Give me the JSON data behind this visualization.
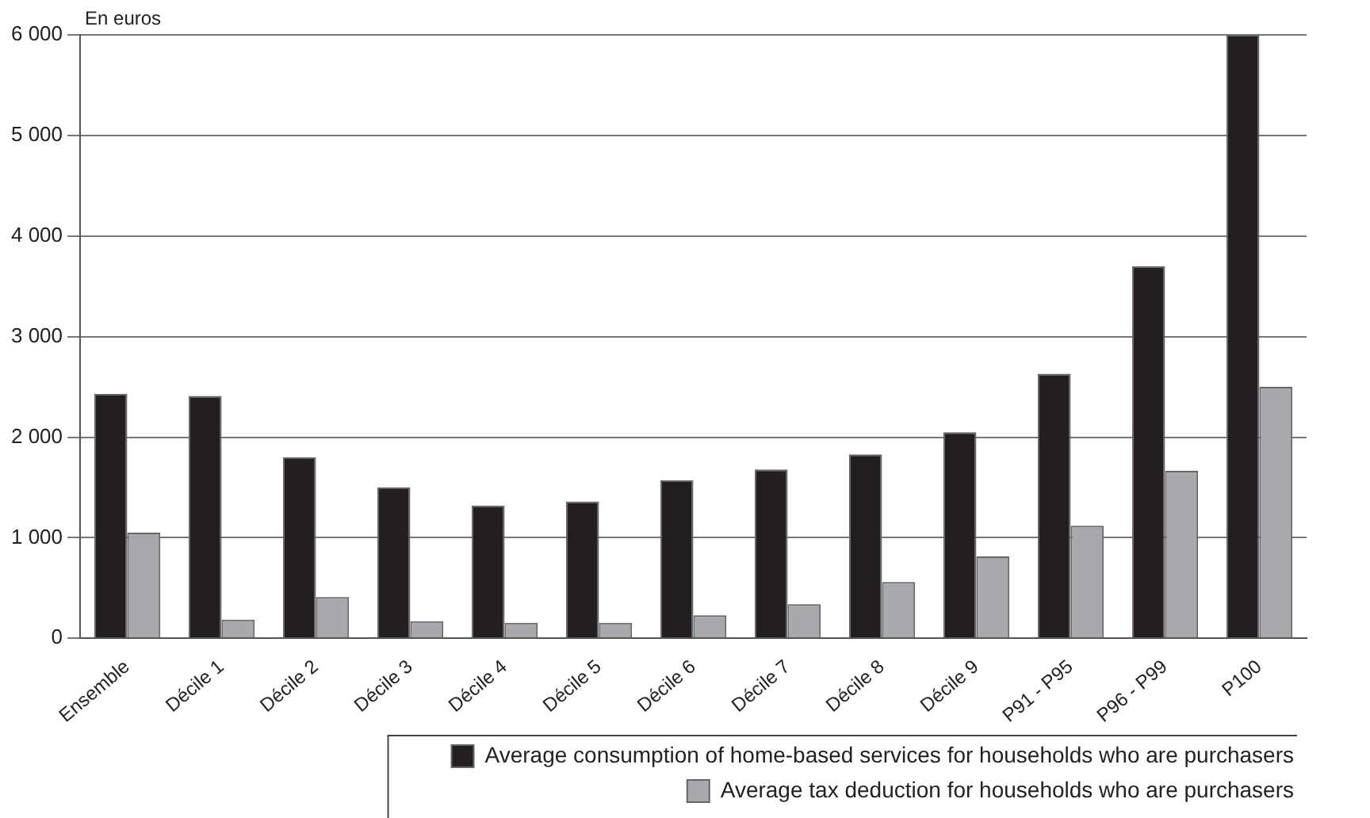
{
  "chart_data": {
    "type": "bar",
    "ylabel": "En euros",
    "categories": [
      "Ensemble",
      "Décile 1",
      "Décile 2",
      "Décile 3",
      "Décile 4",
      "Décile 5",
      "Décile 6",
      "Décile 7",
      "Décile 8",
      "Décile 9",
      "P91 - P95",
      "P96 - P99",
      "P100"
    ],
    "series": [
      {
        "name": "Average consumption of home-based services for households who are purchasers",
        "color": "#231f20",
        "values": [
          2430,
          2410,
          1800,
          1500,
          1320,
          1360,
          1570,
          1680,
          1830,
          2050,
          2630,
          3700,
          6000
        ]
      },
      {
        "name": "Average tax deduction for households who are purchasers",
        "color": "#a7a9ac",
        "values": [
          1050,
          185,
          410,
          170,
          155,
          155,
          230,
          340,
          560,
          815,
          1120,
          1665,
          2500
        ]
      }
    ],
    "ylim": [
      0,
      6000
    ],
    "yticks": [
      0,
      {
        "value": 1000,
        "label": "1 000"
      },
      {
        "value": 2000,
        "label": "2 000"
      },
      {
        "value": 3000,
        "label": "3 000"
      },
      {
        "value": 4000,
        "label": "4 000"
      },
      {
        "value": 5000,
        "label": "5 000"
      },
      {
        "value": 6000,
        "label": "6 000"
      }
    ],
    "grid": "y",
    "legend": "bottom"
  }
}
